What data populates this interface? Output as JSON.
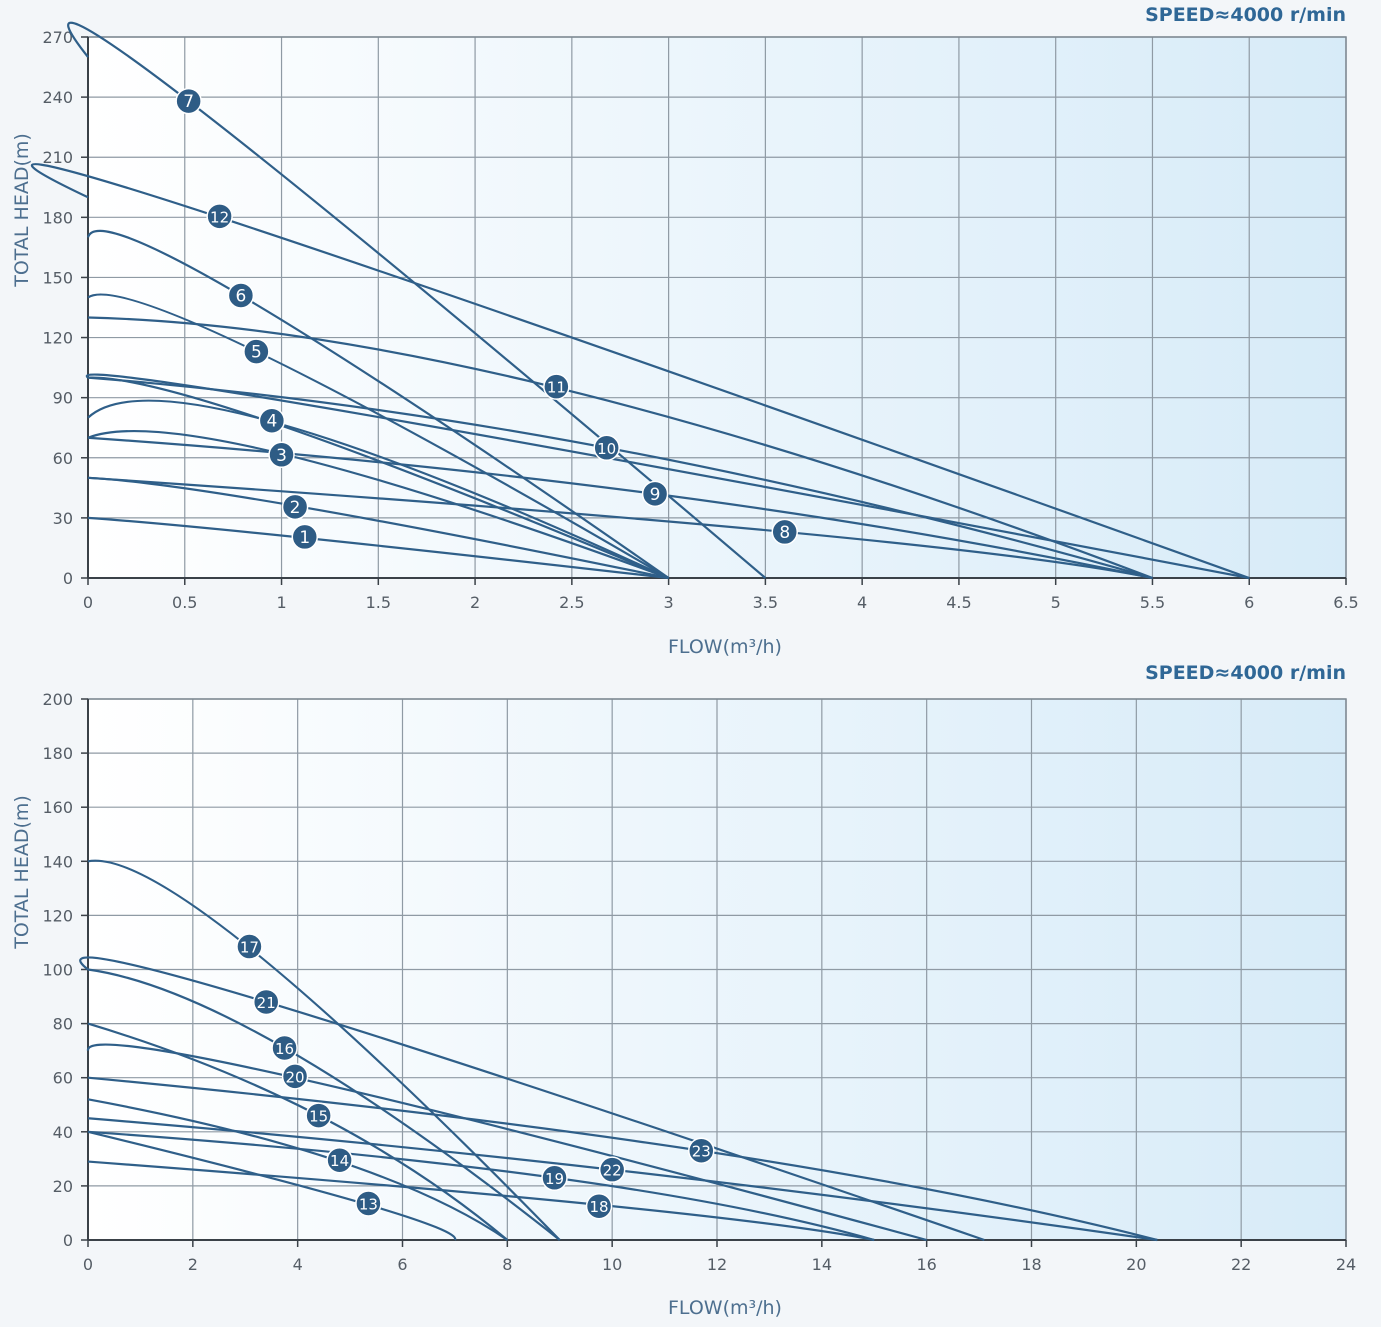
{
  "chart_data": [
    {
      "type": "line",
      "speed_label": "SPEED≈4000 r/min",
      "xlabel": "FLOW(m³/h)",
      "ylabel": "TOTAL HEAD(m)",
      "xlim": [
        0,
        6.5
      ],
      "ylim": [
        0,
        270
      ],
      "xticks": [
        0,
        0.5,
        1,
        1.5,
        2,
        2.5,
        3,
        3.5,
        4,
        4.5,
        5,
        5.5,
        6,
        6.5
      ],
      "xtick_labels": [
        "0",
        "0.5",
        "1",
        "1.5",
        "2",
        "2.5",
        "3",
        "3.5",
        "4",
        "4.5",
        "5",
        "5.5",
        "6",
        "6.5"
      ],
      "yticks": [
        0,
        30,
        60,
        90,
        120,
        150,
        180,
        210,
        240,
        270
      ],
      "ytick_labels": [
        "0",
        "30",
        "60",
        "90",
        "120",
        "150",
        "180",
        "210",
        "240",
        "270"
      ],
      "grid": true,
      "series": [
        {
          "name": "1",
          "points": [
            [
              0,
              30
            ],
            [
              1.12,
              20
            ],
            [
              3,
              0
            ]
          ],
          "label_at": [
            1.12,
            20.5
          ]
        },
        {
          "name": "2",
          "points": [
            [
              0,
              50
            ],
            [
              1.07,
              36
            ],
            [
              3,
              0
            ]
          ],
          "label_at": [
            1.07,
            35.5
          ]
        },
        {
          "name": "3",
          "points": [
            [
              0,
              70
            ],
            [
              1.0,
              62
            ],
            [
              3,
              0
            ]
          ],
          "label_at": [
            1.0,
            61.5
          ]
        },
        {
          "name": "4",
          "points": [
            [
              0,
              80
            ],
            [
              0.95,
              78
            ],
            [
              3,
              0
            ]
          ],
          "label_at": [
            0.95,
            78.5
          ]
        },
        {
          "name": "5",
          "points": [
            [
              0,
              140
            ],
            [
              0.87,
              113
            ],
            [
              3,
              0
            ]
          ],
          "label_at": [
            0.87,
            113
          ]
        },
        {
          "name": "6",
          "points": [
            [
              0,
              170
            ],
            [
              0.79,
              141
            ],
            [
              3,
              0
            ]
          ],
          "label_at": [
            0.79,
            141
          ]
        },
        {
          "name": "7",
          "points": [
            [
              0,
              260
            ],
            [
              0.52,
              238
            ],
            [
              3.5,
              0
            ]
          ],
          "label_at": [
            0.52,
            238
          ]
        },
        {
          "name": "8",
          "points": [
            [
              0,
              50
            ],
            [
              3.6,
              23
            ],
            [
              5.5,
              0
            ]
          ],
          "label_at": [
            3.6,
            23
          ]
        },
        {
          "name": "9",
          "points": [
            [
              0,
              70
            ],
            [
              2.93,
              42
            ],
            [
              5.5,
              0
            ]
          ],
          "label_at": [
            2.93,
            42
          ]
        },
        {
          "name": "10",
          "points": [
            [
              0,
              100
            ],
            [
              2.68,
              65
            ],
            [
              5.5,
              0
            ]
          ],
          "label_at": [
            2.68,
            65
          ]
        },
        {
          "name": "11",
          "points": [
            [
              0,
              130
            ],
            [
              2.42,
              95
            ],
            [
              5.5,
              0
            ]
          ],
          "label_at": [
            2.42,
            95.5
          ]
        },
        {
          "name": "12",
          "points": [
            [
              0,
              190
            ],
            [
              0.68,
              180
            ],
            [
              6,
              0
            ]
          ],
          "label_at": [
            0.68,
            180.5
          ]
        },
        {
          "name": "",
          "points": [
            [
              0,
              100
            ],
            [
              1.0,
              76
            ],
            [
              3,
              0
            ]
          ]
        },
        {
          "name": "",
          "points": [
            [
              0,
              100
            ],
            [
              1.4,
              82
            ],
            [
              6,
              0
            ]
          ]
        }
      ]
    },
    {
      "type": "line",
      "speed_label": "SPEED≈4000 r/min",
      "xlabel": "FLOW(m³/h)",
      "ylabel": "TOTAL HEAD(m)",
      "xlim": [
        0,
        24
      ],
      "ylim": [
        0,
        200
      ],
      "xticks": [
        0,
        2,
        4,
        6,
        8,
        10,
        12,
        14,
        16,
        18,
        20,
        22,
        24
      ],
      "xtick_labels": [
        "0",
        "2",
        "4",
        "6",
        "8",
        "10",
        "12",
        "14",
        "16",
        "18",
        "20",
        "22",
        "24"
      ],
      "yticks": [
        0,
        20,
        40,
        60,
        80,
        100,
        120,
        140,
        160,
        180,
        200
      ],
      "ytick_labels": [
        "0",
        "20",
        "40",
        "60",
        "80",
        "100",
        "120",
        "140",
        "160",
        "180",
        "200"
      ],
      "grid": true,
      "series": [
        {
          "name": "13",
          "points": [
            [
              0,
              40
            ],
            [
              5.35,
              13
            ],
            [
              7,
              0
            ]
          ],
          "label_at": [
            5.35,
            13.5
          ]
        },
        {
          "name": "14",
          "points": [
            [
              0,
              52
            ],
            [
              4.8,
              29
            ],
            [
              8,
              0
            ]
          ],
          "label_at": [
            4.8,
            29.5
          ]
        },
        {
          "name": "15",
          "points": [
            [
              0,
              80
            ],
            [
              4.4,
              46
            ],
            [
              8,
              0
            ]
          ],
          "label_at": [
            4.4,
            46
          ]
        },
        {
          "name": "16",
          "points": [
            [
              0,
              100
            ],
            [
              3.75,
              71
            ],
            [
              9,
              0
            ]
          ],
          "label_at": [
            3.75,
            71
          ]
        },
        {
          "name": "17",
          "points": [
            [
              0,
              140
            ],
            [
              3.08,
              108
            ],
            [
              9,
              0
            ]
          ],
          "label_at": [
            3.08,
            108.5
          ]
        },
        {
          "name": "18",
          "points": [
            [
              0,
              29
            ],
            [
              9.75,
              13
            ],
            [
              15,
              0
            ]
          ],
          "label_at": [
            9.75,
            12.5
          ]
        },
        {
          "name": "19",
          "points": [
            [
              0,
              40
            ],
            [
              8.9,
              23
            ],
            [
              15,
              0
            ]
          ],
          "label_at": [
            8.9,
            23
          ]
        },
        {
          "name": "20",
          "points": [
            [
              0,
              70
            ],
            [
              3.95,
              60
            ],
            [
              16,
              0
            ]
          ],
          "label_at": [
            3.95,
            60.5
          ]
        },
        {
          "name": "21",
          "points": [
            [
              0,
              100
            ],
            [
              3.4,
              88
            ],
            [
              17.1,
              0
            ]
          ],
          "label_at": [
            3.4,
            88
          ]
        },
        {
          "name": "22",
          "points": [
            [
              0,
              45
            ],
            [
              10.0,
              26
            ],
            [
              20.4,
              0
            ]
          ],
          "label_at": [
            10.0,
            26
          ]
        },
        {
          "name": "23",
          "points": [
            [
              0,
              60
            ],
            [
              11.7,
              33
            ],
            [
              20.4,
              0
            ]
          ],
          "label_at": [
            11.7,
            33
          ]
        }
      ]
    }
  ]
}
